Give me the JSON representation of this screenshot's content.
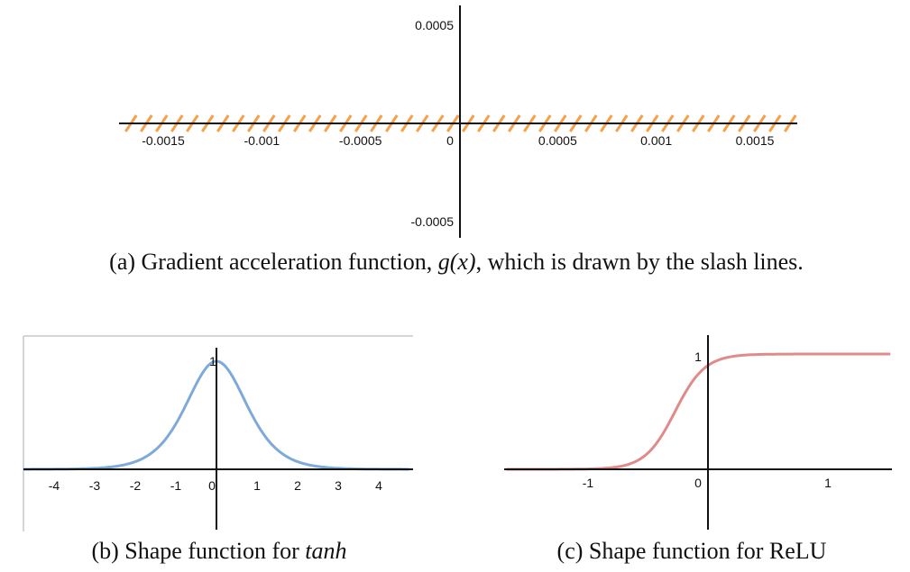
{
  "chart_data": [
    {
      "type": "line",
      "panel": "a",
      "title": "",
      "xlabel": "",
      "ylabel": "",
      "xlim": [
        -0.0017,
        0.0017
      ],
      "ylim": [
        -0.00058,
        0.00058
      ],
      "x_ticks": [
        "-0.0015",
        "-0.001",
        "-0.0005",
        "0",
        "0.0005",
        "0.001",
        "0.0015"
      ],
      "y_ticks": [
        "0.0005",
        "-0.0005"
      ],
      "series": [
        {
          "x": [
            -0.0017,
            0.0017
          ],
          "y": [
            0,
            0
          ],
          "style": "slash-lines",
          "color": "#f5a04a"
        }
      ],
      "caption": {
        "prefix": "(a) Gradient acceleration function, ",
        "math": "g(x)",
        "suffix": ", which is drawn by the slash lines."
      },
      "grid": false
    },
    {
      "type": "line",
      "panel": "b",
      "title": "",
      "xlabel": "",
      "ylabel": "",
      "xlim": [
        -4.75,
        4.75
      ],
      "ylim": [
        -0.55,
        1.18
      ],
      "x_ticks": [
        "-4",
        "-3",
        "-2",
        "-1",
        "0",
        "1",
        "2",
        "3",
        "4"
      ],
      "y_ticks": [
        "1"
      ],
      "series": [
        {
          "function": "1 - tanh(x)^2",
          "x": [
            -4.75,
            -4,
            -3,
            -2.5,
            -2,
            -1.5,
            -1,
            -0.5,
            0,
            0.5,
            1,
            1.5,
            2,
            2.5,
            3,
            4,
            4.75
          ],
          "y": [
            0.0003,
            0.0013,
            0.0099,
            0.0266,
            0.0707,
            0.1807,
            0.42,
            0.7864,
            1,
            0.7864,
            0.42,
            0.1807,
            0.0707,
            0.0266,
            0.0099,
            0.0013,
            0.0003
          ],
          "color": "#7ea9d8"
        }
      ],
      "caption": {
        "prefix": "(b) Shape function for ",
        "math": "tanh"
      },
      "grid": false
    },
    {
      "type": "line",
      "panel": "c",
      "title": "",
      "xlabel": "",
      "ylabel": "",
      "xlim": [
        -1.68,
        1.52
      ],
      "ylim": [
        -0.5,
        1.08
      ],
      "x_ticks": [
        "-1",
        "0",
        "1"
      ],
      "y_ticks": [
        "1"
      ],
      "series": [
        {
          "function": "1 / (1 + e^(-8x - 2.2))",
          "x": [
            -1.68,
            -1.4,
            -1.2,
            -1,
            -0.8,
            -0.6,
            -0.5,
            -0.4,
            -0.3,
            -0.2,
            -0.1,
            0,
            0.2,
            0.4,
            0.7,
            1,
            1.52
          ],
          "y": [
            0,
            0.0001,
            0.0006,
            0.0033,
            0.0158,
            0.0707,
            0.1419,
            0.2689,
            0.4502,
            0.6457,
            0.8022,
            0.9002,
            0.9781,
            0.9955,
            0.9996,
            1,
            1
          ],
          "color": "#e08a8a"
        }
      ],
      "caption": {
        "prefix": "(c) Shape function for ReLU"
      },
      "grid": false
    }
  ]
}
